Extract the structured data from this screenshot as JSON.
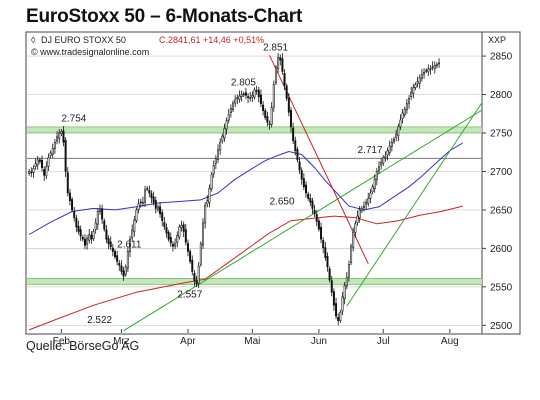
{
  "page": {
    "title": "EuroStoxx 50 – 6-Monats-Chart",
    "source": "Quelle: BörseGo AG"
  },
  "chart_data": {
    "type": "candlestick",
    "header": {
      "symbol": "DJ EURO STOXX 50",
      "last_label": "C.2841,61 +14,46 +0,51%",
      "website": "© www.tradesignalonline.com",
      "axis_code": "XXP"
    },
    "ylim": [
      2490,
      2880
    ],
    "yticks": [
      2500,
      2550,
      2600,
      2650,
      2700,
      2750,
      2800,
      2850
    ],
    "months": [
      {
        "label": "Feb",
        "day": 15
      },
      {
        "label": "Mrz",
        "day": 43
      },
      {
        "label": "Apr",
        "day": 74
      },
      {
        "label": "Mai",
        "day": 104
      },
      {
        "label": "Jun",
        "day": 135
      },
      {
        "label": "Jul",
        "day": 165
      },
      {
        "label": "Aug",
        "day": 196
      }
    ],
    "xlim": [
      -1,
      211
    ],
    "closes": [
      2700,
      2698,
      2704,
      2710,
      2715,
      2713,
      2705,
      2695,
      2706,
      2718,
      2724,
      2730,
      2738,
      2745,
      2750,
      2752,
      2738,
      2700,
      2672,
      2662,
      2650,
      2640,
      2628,
      2622,
      2616,
      2612,
      2604,
      2613,
      2618,
      2612,
      2622,
      2633,
      2648,
      2650,
      2638,
      2625,
      2612,
      2606,
      2602,
      2596,
      2589,
      2583,
      2578,
      2570,
      2564,
      2576,
      2596,
      2612,
      2624,
      2637,
      2650,
      2658,
      2660,
      2660,
      2676,
      2678,
      2672,
      2666,
      2660,
      2652,
      2654,
      2645,
      2636,
      2628,
      2620,
      2612,
      2607,
      2603,
      2606,
      2617,
      2628,
      2630,
      2622,
      2608,
      2596,
      2583,
      2570,
      2558,
      2554,
      2577,
      2606,
      2633,
      2656,
      2662,
      2678,
      2696,
      2708,
      2717,
      2728,
      2738,
      2746,
      2756,
      2766,
      2774,
      2782,
      2789,
      2793,
      2796,
      2798,
      2800,
      2800,
      2799,
      2796,
      2795,
      2799,
      2806,
      2805,
      2797,
      2788,
      2779,
      2770,
      2764,
      2762,
      2783,
      2813,
      2835,
      2848,
      2845,
      2830,
      2812,
      2795,
      2777,
      2758,
      2740,
      2727,
      2715,
      2702,
      2690,
      2680,
      2672,
      2665,
      2660,
      2652,
      2645,
      2635,
      2625,
      2612,
      2601,
      2588,
      2576,
      2559,
      2543,
      2526,
      2512,
      2506,
      2517,
      2537,
      2552,
      2562,
      2579,
      2603,
      2621,
      2632,
      2642,
      2650,
      2652,
      2655,
      2660,
      2665,
      2672,
      2680,
      2690,
      2700,
      2706,
      2712,
      2718,
      2720,
      2727,
      2733,
      2738,
      2742,
      2748,
      2758,
      2767,
      2776,
      2781,
      2788,
      2795,
      2803,
      2809,
      2813,
      2817,
      2822,
      2826,
      2829,
      2831,
      2833,
      2834,
      2836,
      2838,
      2839,
      2841
    ],
    "volatility": 8,
    "lines": [
      {
        "name": "ema50",
        "color": "#3333cc",
        "points": [
          [
            0,
            2618
          ],
          [
            10,
            2634
          ],
          [
            20,
            2648
          ],
          [
            30,
            2652
          ],
          [
            40,
            2650
          ],
          [
            50,
            2654
          ],
          [
            60,
            2659
          ],
          [
            70,
            2661
          ],
          [
            80,
            2663
          ],
          [
            88,
            2672
          ],
          [
            96,
            2690
          ],
          [
            104,
            2704
          ],
          [
            110,
            2714
          ],
          [
            115,
            2720
          ],
          [
            121,
            2726
          ],
          [
            127,
            2722
          ],
          [
            133,
            2705
          ],
          [
            138,
            2688
          ],
          [
            144,
            2670
          ],
          [
            149,
            2655
          ],
          [
            156,
            2650
          ],
          [
            163,
            2654
          ],
          [
            170,
            2667
          ],
          [
            177,
            2680
          ],
          [
            183,
            2694
          ],
          [
            190,
            2712
          ],
          [
            196,
            2727
          ],
          [
            202,
            2737
          ]
        ]
      },
      {
        "name": "ema200",
        "color": "#cc2222",
        "points": [
          [
            0,
            2494
          ],
          [
            12,
            2507
          ],
          [
            30,
            2526
          ],
          [
            50,
            2543
          ],
          [
            70,
            2554
          ],
          [
            82,
            2560
          ],
          [
            92,
            2580
          ],
          [
            102,
            2600
          ],
          [
            112,
            2620
          ],
          [
            122,
            2636
          ],
          [
            132,
            2639
          ],
          [
            142,
            2642
          ],
          [
            152,
            2640
          ],
          [
            162,
            2632
          ],
          [
            172,
            2636
          ],
          [
            182,
            2643
          ],
          [
            192,
            2648
          ],
          [
            202,
            2655
          ]
        ]
      },
      {
        "name": "trend-up-long",
        "color": "#33aa33",
        "points": [
          [
            44,
            2493
          ],
          [
            214,
            2785
          ]
        ]
      },
      {
        "name": "trend-up-short",
        "color": "#33aa33",
        "points": [
          [
            148,
            2525
          ],
          [
            214,
            2802
          ]
        ]
      },
      {
        "name": "trend-down",
        "color": "#cc2222",
        "points": [
          [
            112,
            2851
          ],
          [
            158,
            2580
          ]
        ]
      }
    ],
    "support_bands": [
      2754,
      2557
    ],
    "resistance_lines": [
      2717
    ],
    "annotations": [
      {
        "text": "2.754",
        "x": 15,
        "y": 2765
      },
      {
        "text": "2.611",
        "x": 41,
        "y": 2601
      },
      {
        "text": "2.557",
        "x": 69,
        "y": 2536
      },
      {
        "text": "2.522",
        "x": 27,
        "y": 2503
      },
      {
        "text": "2.805",
        "x": 94,
        "y": 2812
      },
      {
        "text": "2.851",
        "x": 109,
        "y": 2857
      },
      {
        "text": "2.650",
        "x": 112,
        "y": 2657
      },
      {
        "text": "2.717",
        "x": 153,
        "y": 2724
      }
    ]
  }
}
